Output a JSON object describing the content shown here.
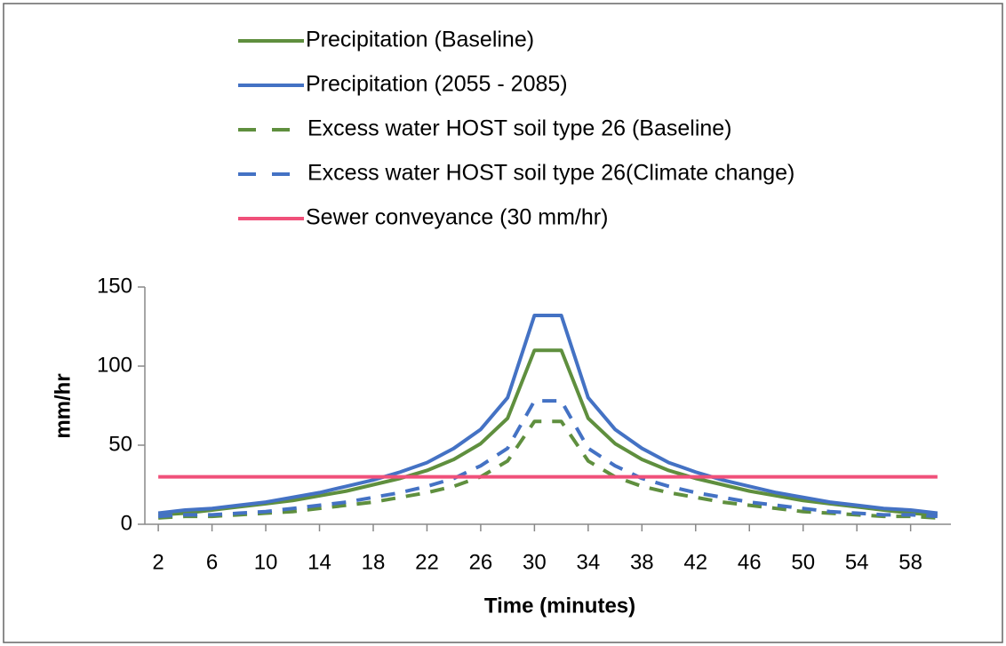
{
  "chart_data": {
    "type": "line",
    "x_label": "Time (minutes)",
    "y_label": "mm/hr",
    "x": [
      2,
      4,
      6,
      8,
      10,
      12,
      14,
      16,
      18,
      20,
      22,
      24,
      26,
      28,
      30,
      32,
      34,
      36,
      38,
      40,
      42,
      44,
      46,
      48,
      50,
      52,
      54,
      56,
      58,
      60
    ],
    "xlim": [
      1,
      61
    ],
    "xticks": [
      2,
      6,
      10,
      14,
      18,
      22,
      26,
      30,
      34,
      38,
      42,
      46,
      50,
      54,
      58
    ],
    "ylim": [
      0,
      150
    ],
    "yticks": [
      0,
      50,
      100,
      150
    ],
    "series": [
      {
        "name": "Precipitation (Baseline)",
        "color": "#5f8f3e",
        "dash": false,
        "values": [
          6,
          7,
          9,
          11,
          13,
          15,
          18,
          21,
          25,
          29,
          34,
          41,
          51,
          67,
          110,
          110,
          67,
          51,
          41,
          34,
          29,
          25,
          21,
          18,
          15,
          13,
          11,
          9,
          7,
          6
        ]
      },
      {
        "name": "Precipitation (2055 - 2085)",
        "color": "#4472c4",
        "dash": false,
        "values": [
          7,
          9,
          10,
          12,
          14,
          17,
          20,
          24,
          28,
          33,
          39,
          48,
          60,
          80,
          132,
          132,
          80,
          60,
          48,
          39,
          33,
          28,
          24,
          20,
          17,
          14,
          12,
          10,
          9,
          7
        ]
      },
      {
        "name": "Excess water HOST soil type 26 (Baseline)",
        "color": "#5f8f3e",
        "dash": true,
        "values": [
          4,
          5,
          5,
          6,
          7,
          8,
          10,
          12,
          14,
          17,
          20,
          24,
          30,
          40,
          65,
          65,
          40,
          30,
          24,
          20,
          17,
          14,
          12,
          10,
          8,
          7,
          6,
          5,
          5,
          4
        ]
      },
      {
        "name": "Excess water HOST soil type 26(Climate change)",
        "color": "#4472c4",
        "dash": true,
        "values": [
          5,
          6,
          6,
          7,
          8,
          10,
          12,
          14,
          17,
          20,
          24,
          29,
          37,
          48,
          78,
          78,
          48,
          37,
          29,
          24,
          20,
          17,
          14,
          12,
          10,
          8,
          7,
          6,
          6,
          5
        ]
      },
      {
        "name": "Sewer conveyance (30 mm/hr)",
        "color": "#f0507a",
        "dash": false,
        "values": [
          30,
          30,
          30,
          30,
          30,
          30,
          30,
          30,
          30,
          30,
          30,
          30,
          30,
          30,
          30,
          30,
          30,
          30,
          30,
          30,
          30,
          30,
          30,
          30,
          30,
          30,
          30,
          30,
          30,
          30
        ]
      }
    ]
  }
}
